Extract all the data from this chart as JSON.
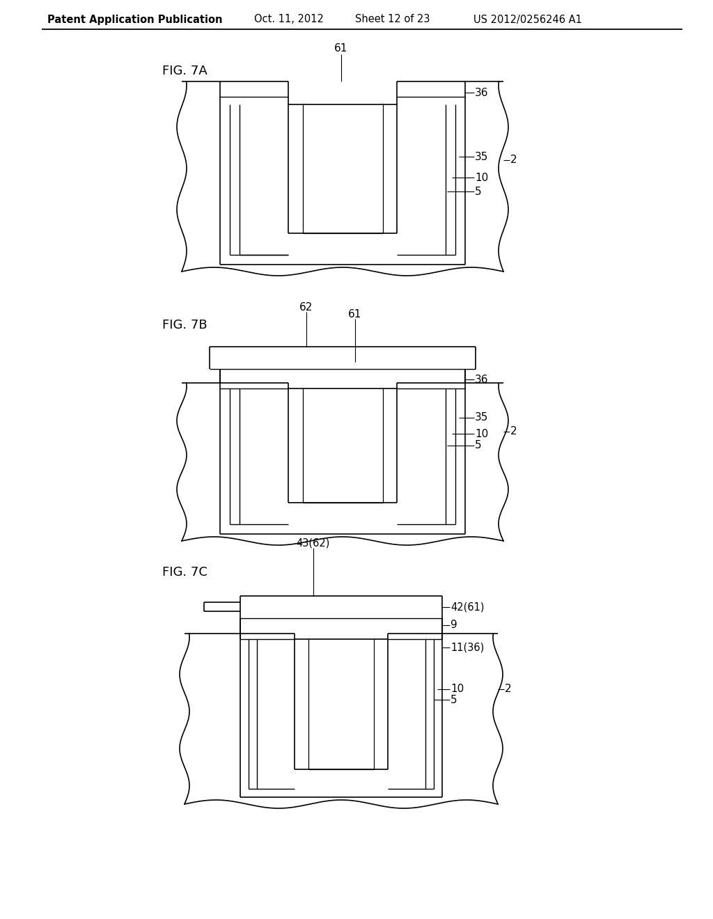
{
  "bg_color": "#ffffff",
  "header_text": "Patent Application Publication",
  "header_date": "Oct. 11, 2012",
  "header_sheet": "Sheet 12 of 23",
  "header_patent": "US 2012/0256246 A1",
  "fig7a_label": "FIG. 7A",
  "fig7b_label": "FIG. 7B",
  "fig7c_label": "FIG. 7C"
}
